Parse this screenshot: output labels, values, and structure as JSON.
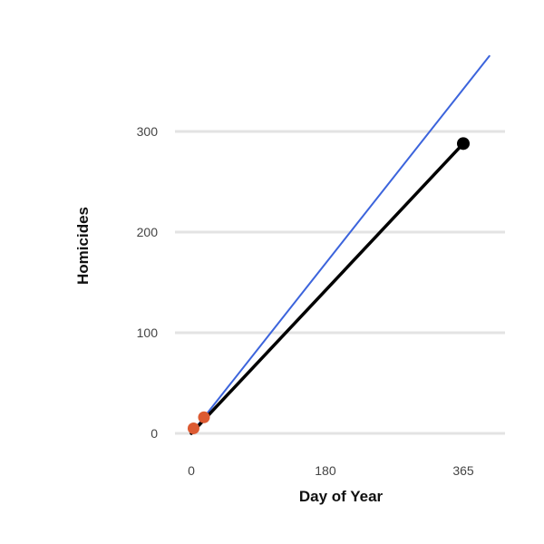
{
  "chart_data": {
    "type": "line",
    "title": "",
    "xlabel": "Day of Year",
    "ylabel": "Homicides",
    "xlim": [
      0,
      400
    ],
    "ylim": [
      0,
      300
    ],
    "x_ticks": [
      0,
      180,
      365
    ],
    "y_ticks": [
      0,
      100,
      200,
      300
    ],
    "grid": "horizontal",
    "legend": "none",
    "series": [
      {
        "color": "#3c64dc",
        "style": "line",
        "x": [
          0,
          400
        ],
        "y": [
          0,
          375
        ]
      },
      {
        "color": "#000000",
        "style": "line-with-end-marker",
        "x": [
          0,
          365
        ],
        "y": [
          0,
          288
        ]
      },
      {
        "color": "#dc5a32",
        "style": "points",
        "x": [
          3,
          17
        ],
        "y": [
          5,
          16
        ]
      }
    ]
  }
}
